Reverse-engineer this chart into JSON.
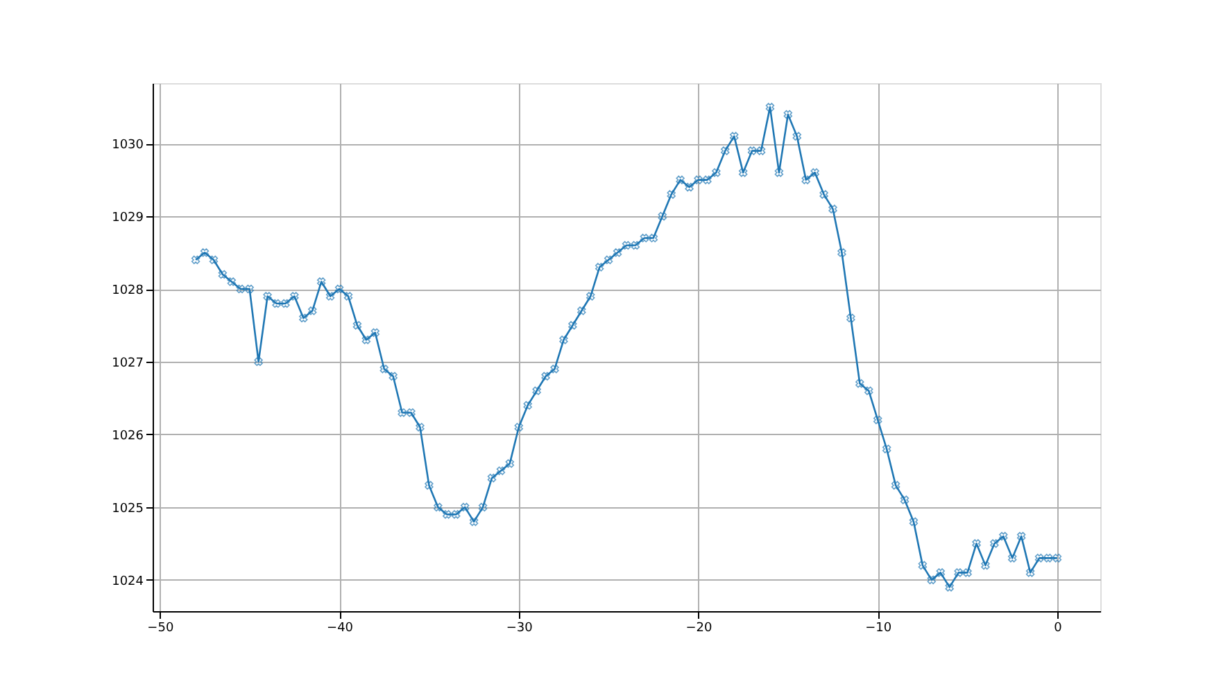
{
  "chart_data": {
    "type": "line",
    "x": [
      -48,
      -47.5,
      -47,
      -46.5,
      -46,
      -45.5,
      -45,
      -44.5,
      -44,
      -43.5,
      -43,
      -42.5,
      -42,
      -41.5,
      -41,
      -40.5,
      -40,
      -39.5,
      -39,
      -38.5,
      -38,
      -37.5,
      -37,
      -36.5,
      -36,
      -35.5,
      -35,
      -34.5,
      -34,
      -33.5,
      -33,
      -32.5,
      -32,
      -31.5,
      -31,
      -30.5,
      -30,
      -29.5,
      -29,
      -28.5,
      -28,
      -27.5,
      -27,
      -26.5,
      -26,
      -25.5,
      -25,
      -24.5,
      -24,
      -23.5,
      -23,
      -22.5,
      -22,
      -21.5,
      -21,
      -20.5,
      -20,
      -19.5,
      -19,
      -18.5,
      -18,
      -17.5,
      -17,
      -16.5,
      -16,
      -15.5,
      -15,
      -14.5,
      -14,
      -13.5,
      -13,
      -12.5,
      -12,
      -11.5,
      -11,
      -10.5,
      -10,
      -9.5,
      -9,
      -8.5,
      -8,
      -7.5,
      -7,
      -6.5,
      -6,
      -5.5,
      -5,
      -4.5,
      -4,
      -3.5,
      -3,
      -2.5,
      -2,
      -1.5,
      -1,
      -0.5,
      0
    ],
    "series": [
      {
        "color": "#1f77b4",
        "values": [
          1028.4,
          1028.5,
          1028.4,
          1028.2,
          1028.1,
          1028.0,
          1028.0,
          1027.0,
          1027.9,
          1027.8,
          1027.8,
          1027.9,
          1027.6,
          1027.7,
          1028.1,
          1027.9,
          1028.0,
          1027.9,
          1027.5,
          1027.3,
          1027.4,
          1026.9,
          1026.8,
          1026.3,
          1026.3,
          1026.1,
          1025.3,
          1025.0,
          1024.9,
          1024.9,
          1025.0,
          1024.8,
          1025.0,
          1025.4,
          1025.5,
          1025.6,
          1026.1,
          1026.4,
          1026.6,
          1026.8,
          1026.9,
          1027.3,
          1027.5,
          1027.7,
          1027.9,
          1028.3,
          1028.4,
          1028.5,
          1028.6,
          1028.6,
          1028.7,
          1028.7,
          1029.0,
          1029.3,
          1029.5,
          1029.4,
          1029.5,
          1029.5,
          1029.6,
          1029.9,
          1030.1,
          1029.6,
          1029.9,
          1029.9,
          1030.5,
          1029.6,
          1030.4,
          1030.1,
          1029.5,
          1029.6,
          1029.3,
          1029.1,
          1028.5,
          1027.6,
          1026.7,
          1026.6,
          1026.2,
          1025.8,
          1025.3,
          1025.1,
          1024.8,
          1024.2,
          1024.0,
          1024.1,
          1023.9,
          1024.1,
          1024.1,
          1024.5,
          1024.2,
          1024.5,
          1024.6,
          1024.3,
          1024.6,
          1024.1,
          1024.3,
          1024.3,
          1024.3
        ]
      }
    ],
    "xlim": [
      -50.4,
      2.4
    ],
    "xticks": [
      -50,
      -40,
      -30,
      -20,
      -10,
      0
    ],
    "ylim": [
      1023.57,
      1030.83
    ],
    "yticks": [
      1024,
      1025,
      1026,
      1027,
      1028,
      1029,
      1030
    ],
    "grid": true,
    "marker": "cross",
    "line_style": "solid"
  }
}
